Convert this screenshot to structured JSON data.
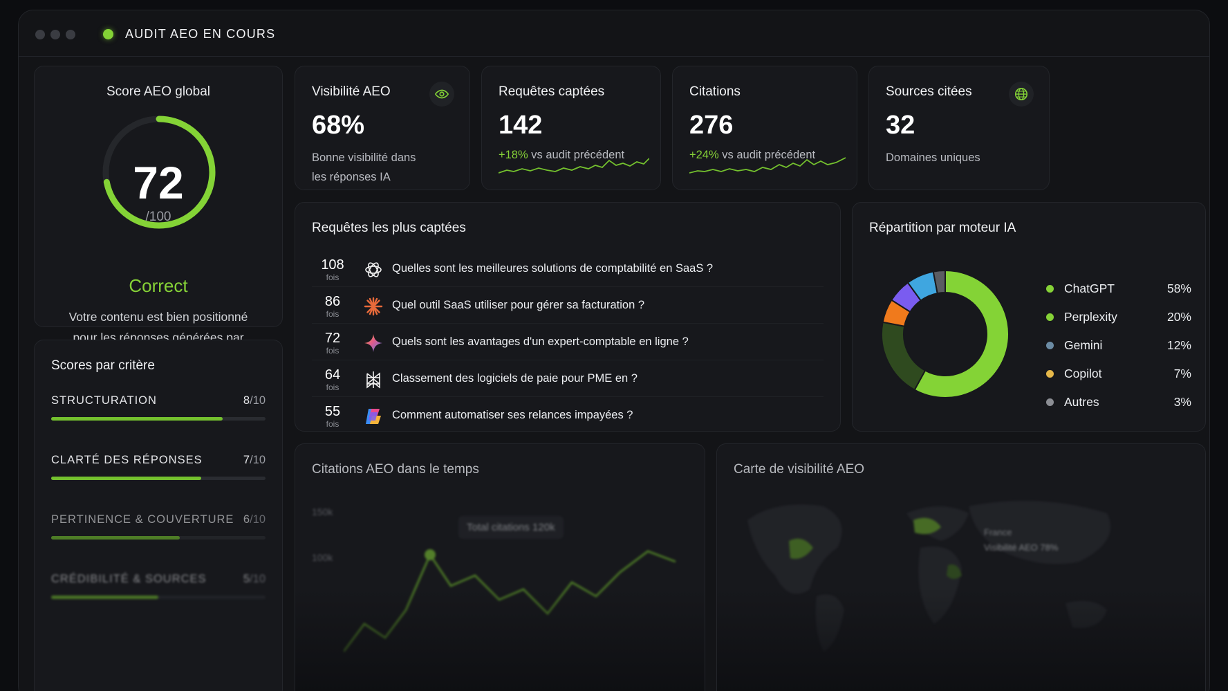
{
  "window": {
    "title": "AUDIT AEO EN COURS"
  },
  "score": {
    "title": "Score AEO global",
    "value": "72",
    "max": "/100",
    "fraction": 0.72,
    "label": "Correct",
    "description_line1": "Votre contenu est bien positionné",
    "description_line2": "pour les réponses générées par l'IA."
  },
  "kpis": {
    "visibility": {
      "title": "Visibilité AEO",
      "value": "68%",
      "sub1": "Bonne visibilité dans",
      "sub2": "les réponses IA",
      "icon": "eye-icon"
    },
    "requests": {
      "title": "Requêtes captées",
      "value": "142",
      "delta": "+18%",
      "delta_text": "vs audit précédent"
    },
    "citations": {
      "title": "Citations",
      "value": "276",
      "delta": "+24%",
      "delta_text": "vs audit précédent"
    },
    "sources": {
      "title": "Sources citées",
      "value": "32",
      "sub1": "Domaines uniques",
      "icon": "globe-icon"
    }
  },
  "criteria": {
    "title": "Scores par critère",
    "items": [
      {
        "label": "STRUCTURATION",
        "score": "8",
        "den": "/10",
        "fraction": 0.8
      },
      {
        "label": "CLARTÉ DES RÉPONSES",
        "score": "7",
        "den": "/10",
        "fraction": 0.7
      },
      {
        "label": "PERTINENCE & COUVERTURE",
        "score": "6",
        "den": "/10",
        "fraction": 0.6
      },
      {
        "label": "CRÉDIBILITÉ & SOURCES",
        "score": "5",
        "den": "/10",
        "fraction": 0.5
      }
    ]
  },
  "queries": {
    "title": "Requêtes les plus captées",
    "unit": "fois",
    "items": [
      {
        "count": "108",
        "engine": "chatgpt-icon",
        "text": "Quelles sont les meilleures solutions de comptabilité en SaaS ?"
      },
      {
        "count": "86",
        "engine": "claude-icon",
        "text": "Quel outil SaaS utiliser pour gérer sa facturation ?"
      },
      {
        "count": "72",
        "engine": "gemini-icon",
        "text": "Quels sont les avantages d'un expert-comptable en ligne ?"
      },
      {
        "count": "64",
        "engine": "perplexity-icon",
        "text": "Classement des logiciels de paie pour PME en ?"
      },
      {
        "count": "55",
        "engine": "copilot-icon",
        "text": "Comment automatiser ses relances impayées ?"
      }
    ]
  },
  "engines": {
    "title": "Répartition par moteur IA",
    "items": [
      {
        "name": "ChatGPT",
        "pct": "58%",
        "legend_color": "#86d237"
      },
      {
        "name": "Perplexity",
        "pct": "20%",
        "legend_color": "#86d237"
      },
      {
        "name": "Gemini",
        "pct": "12%",
        "legend_color": "#6b8ba4"
      },
      {
        "name": "Copilot",
        "pct": "7%",
        "legend_color": "#e6b84a"
      },
      {
        "name": "Autres",
        "pct": "3%",
        "legend_color": "#8c8e94"
      }
    ]
  },
  "timeline": {
    "title": "Citations AEO dans le temps",
    "tick_top": "150k",
    "tick_mid": "100k",
    "tooltip": "Total citations 120k"
  },
  "map": {
    "title": "Carte de visibilité AEO",
    "region": "France",
    "region_value": "Visibilité AEO 78%"
  }
}
